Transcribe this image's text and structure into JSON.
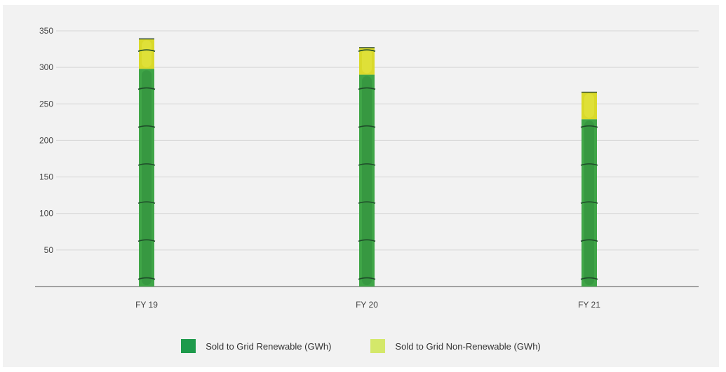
{
  "chart_data": {
    "type": "bar",
    "stacked": true,
    "categories": [
      "FY 19",
      "FY 20",
      "FY 21"
    ],
    "series": [
      {
        "name": "Sold to Grid Renewable (GWh)",
        "values": [
          298,
          290,
          229
        ],
        "color": "#1e9a4b"
      },
      {
        "name": "Sold to Grid Non-Renewable (GWh)",
        "values": [
          41,
          37,
          37
        ],
        "color": "#d4e86a"
      }
    ],
    "ylim": [
      0,
      350
    ],
    "yticks": [
      50,
      100,
      150,
      200,
      250,
      300,
      350
    ],
    "grid": true,
    "legend_position": "bottom-center"
  }
}
